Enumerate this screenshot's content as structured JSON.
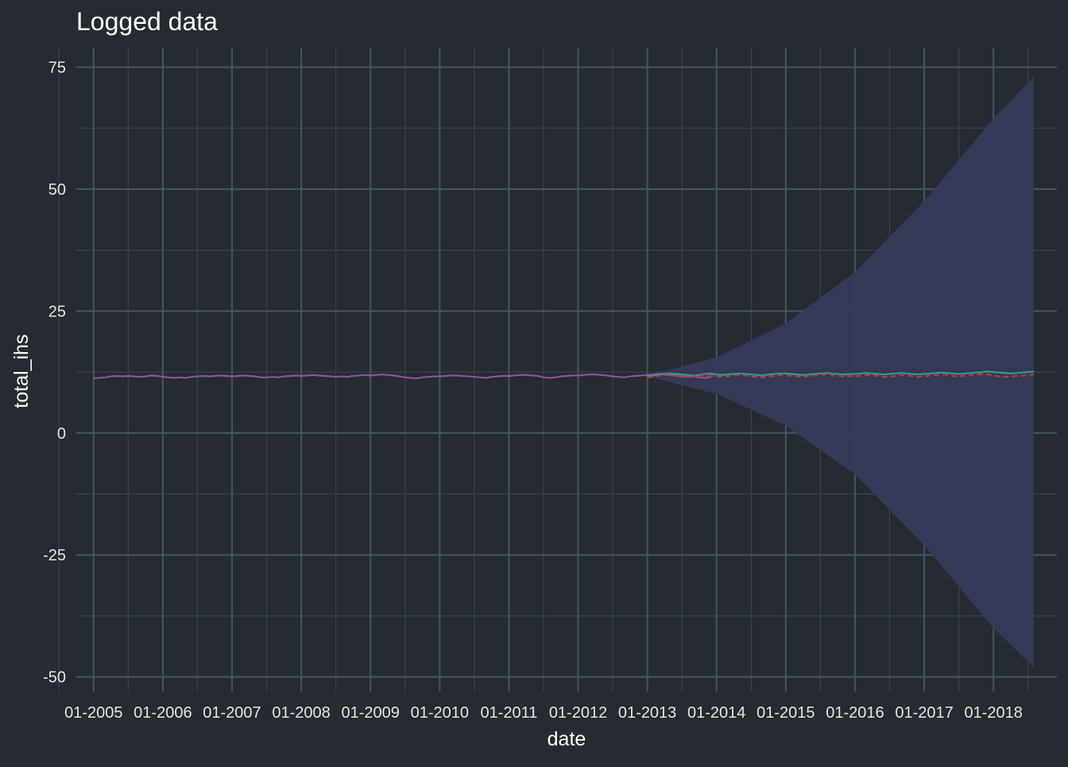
{
  "chart_data": {
    "type": "line",
    "title": "Logged data",
    "xlabel": "date",
    "ylabel": "total_ihs",
    "x_ticks": [
      "01-2005",
      "01-2006",
      "01-2007",
      "01-2008",
      "01-2009",
      "01-2010",
      "01-2011",
      "01-2012",
      "01-2013",
      "01-2014",
      "01-2015",
      "01-2016",
      "01-2017",
      "01-2018"
    ],
    "y_ticks": [
      -50,
      -25,
      0,
      25,
      50,
      75
    ],
    "xlim": [
      "2004-10",
      "2018-12"
    ],
    "ylim": [
      -53,
      79
    ],
    "grid": true,
    "colors": {
      "background": "#262a31",
      "grid_major": "#3e555c",
      "grid_minor": "#34464c",
      "text": "#ffffff",
      "tick_text": "#e6e6e6",
      "historical": "#8e4fa0",
      "actual_test": "#2a9d8f",
      "forecast": "#c0392b",
      "interval": "#343a5a"
    },
    "historical": {
      "start": "2005-01",
      "values": [
        11.2,
        11.3,
        11.4,
        11.6,
        11.7,
        11.6,
        11.7,
        11.6,
        11.5,
        11.6,
        11.8,
        11.7,
        11.5,
        11.4,
        11.3,
        11.4,
        11.3,
        11.5,
        11.6,
        11.7,
        11.6,
        11.7,
        11.8,
        11.7,
        11.6,
        11.7,
        11.8,
        11.7,
        11.6,
        11.4,
        11.4,
        11.5,
        11.4,
        11.6,
        11.7,
        11.8,
        11.7,
        11.8,
        11.9,
        11.8,
        11.7,
        11.6,
        11.5,
        11.6,
        11.5,
        11.7,
        11.8,
        11.9,
        11.8,
        11.9,
        12.0,
        11.9,
        11.8,
        11.6,
        11.4,
        11.3,
        11.2,
        11.4,
        11.5,
        11.6,
        11.6,
        11.7,
        11.8,
        11.8,
        11.7,
        11.6,
        11.5,
        11.4,
        11.3,
        11.5,
        11.6,
        11.7,
        11.7,
        11.8,
        11.9,
        11.9,
        11.8,
        11.7,
        11.4,
        11.3,
        11.4,
        11.6,
        11.7,
        11.8,
        11.8,
        11.9,
        12.0,
        12.0,
        11.9,
        11.8,
        11.6,
        11.5,
        11.4,
        11.6,
        11.7,
        11.8,
        11.9,
        12.0,
        12.1,
        12.0,
        11.9,
        11.8,
        11.6,
        11.5,
        11.6,
        11.4,
        11.3,
        11.5
      ]
    },
    "actual_test": {
      "start": "2013-01",
      "values": [
        11.6,
        11.8,
        12.0,
        12.1,
        12.2,
        12.1,
        12.0,
        11.9,
        11.8,
        11.9,
        12.1,
        12.2,
        12.0,
        11.9,
        12.0,
        12.1,
        12.2,
        12.1,
        12.0,
        11.9,
        11.8,
        12.0,
        12.1,
        12.2,
        12.2,
        12.1,
        12.0,
        11.9,
        12.0,
        12.1,
        12.2,
        12.3,
        12.2,
        12.1,
        12.0,
        12.1,
        12.1,
        12.2,
        12.3,
        12.2,
        12.1,
        12.0,
        12.1,
        12.2,
        12.3,
        12.2,
        12.1,
        12.0,
        12.1,
        12.2,
        12.3,
        12.4,
        12.3,
        12.2,
        12.1,
        12.2,
        12.3,
        12.4,
        12.5,
        12.6,
        12.5,
        12.4,
        12.3,
        12.2,
        12.3,
        12.4,
        12.5,
        12.6
      ]
    },
    "forecast": {
      "start": "2013-01",
      "values": [
        11.4,
        11.5,
        11.7,
        11.9,
        11.8,
        11.7,
        11.6,
        11.5,
        11.6,
        11.8,
        11.9,
        11.8,
        11.6,
        11.5,
        11.6,
        11.8,
        11.9,
        11.8,
        11.6,
        11.5,
        11.4,
        11.6,
        11.7,
        11.9,
        11.8,
        11.7,
        11.6,
        11.5,
        11.7,
        11.8,
        11.9,
        12.0,
        11.9,
        11.7,
        11.6,
        11.7,
        11.6,
        11.8,
        11.9,
        11.8,
        11.7,
        11.5,
        11.6,
        11.7,
        11.9,
        11.8,
        11.7,
        11.5,
        11.6,
        11.8,
        11.9,
        12.0,
        11.9,
        11.7,
        11.6,
        11.8,
        11.9,
        12.0,
        12.1,
        12.0,
        11.8,
        11.6,
        11.5,
        11.6,
        11.7,
        11.8,
        11.9,
        12.0
      ]
    },
    "interval": {
      "dates": [
        "2013-01",
        "2014-01",
        "2015-01",
        "2016-01",
        "2017-01",
        "2018-01",
        "2018-08"
      ],
      "upper": [
        11.8,
        15.5,
        22.5,
        33.0,
        47.5,
        64.5,
        73.0
      ],
      "lower": [
        11.6,
        8.0,
        1.5,
        -8.5,
        -23.0,
        -40.0,
        -48.0
      ]
    }
  }
}
